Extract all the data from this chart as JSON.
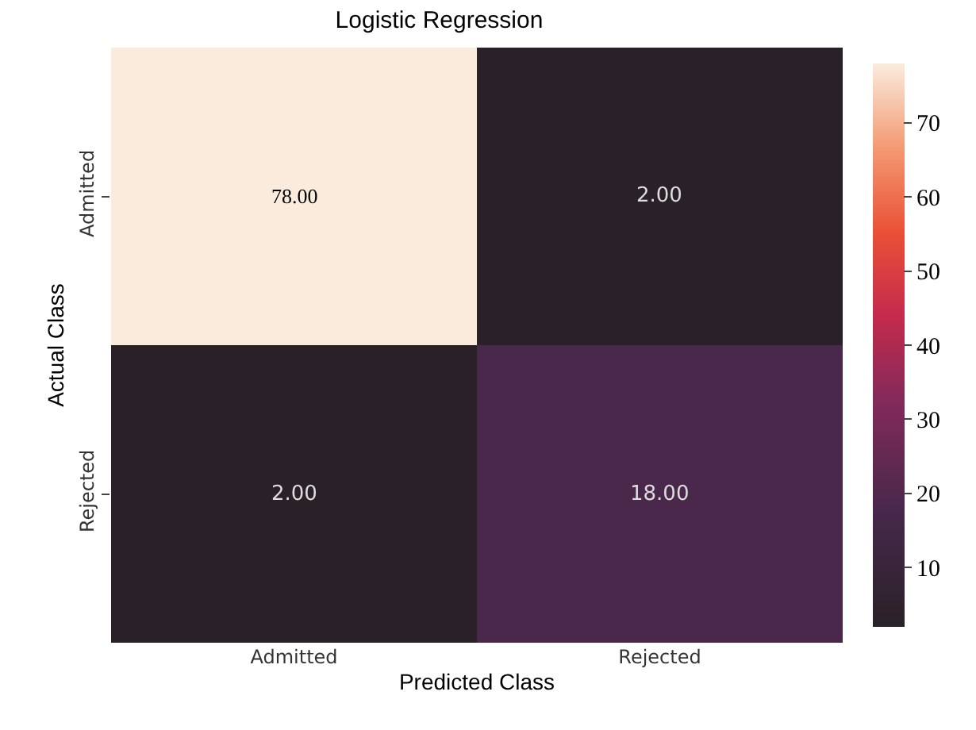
{
  "chart_data": {
    "type": "heatmap",
    "title": "Logistic Regression",
    "xlabel": "Predicted Class",
    "ylabel": "Actual Class",
    "categories": [
      "Admitted",
      "Rejected"
    ],
    "y_categories": [
      "Admitted",
      "Rejected"
    ],
    "cells": [
      [
        78,
        2
      ],
      [
        2,
        18
      ]
    ],
    "cell_labels": [
      [
        "78.00",
        "2.00"
      ],
      [
        "2.00",
        "18.00"
      ]
    ],
    "clim": [
      2,
      78
    ],
    "cticks": [
      10,
      20,
      30,
      40,
      50,
      60,
      70
    ]
  }
}
